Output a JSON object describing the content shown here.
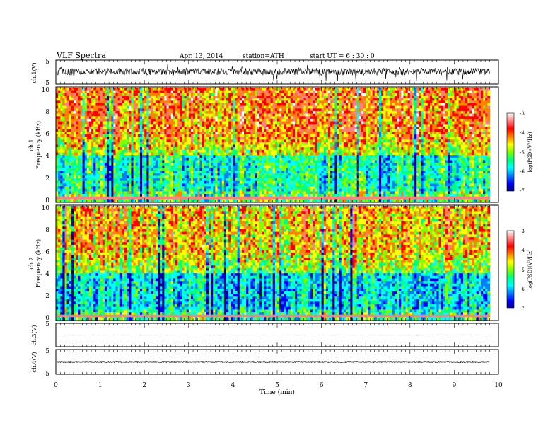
{
  "header": {
    "title": "VLF  Spectra",
    "date": "Apr. 13, 2014",
    "station": "station=ATH",
    "start": "start  UT  =    6  : 30 : 0"
  },
  "chart_data": [
    {
      "type": "line",
      "panel": "ch1-waveform",
      "ylabel": "ch.1(V)",
      "ylim": [
        -5,
        5
      ],
      "yticks": [
        "5",
        "-5"
      ],
      "baseline": 0.2,
      "noise_amplitude": 1.5,
      "x_end_min": 9.8
    },
    {
      "type": "heatmap",
      "panel": "ch1-spectrogram",
      "ylabel": [
        "ch.1",
        "Frequency  (kHz)"
      ],
      "ylim": [
        0,
        10
      ],
      "yticks": [
        "0",
        "2",
        "4",
        "6",
        "8",
        "10"
      ],
      "zlim": [
        -7,
        -3
      ],
      "colorbar_label": "log(PSD)(V²/Hz)",
      "colorbar_ticks": [
        "-3",
        "-4",
        "-5",
        "-6",
        "-7"
      ],
      "x_end_min": 9.8
    },
    {
      "type": "heatmap",
      "panel": "ch2-spectrogram",
      "ylabel": [
        "ch.2",
        "Frequency  (kHz)"
      ],
      "ylim": [
        0,
        10
      ],
      "yticks": [
        "0",
        "2",
        "4",
        "6",
        "8",
        "10"
      ],
      "zlim": [
        -7,
        -3
      ],
      "colorbar_label": "log(PSD)(V²/Hz)",
      "colorbar_ticks": [
        "-3",
        "-4",
        "-5",
        "-6",
        "-7"
      ],
      "x_end_min": 9.8
    },
    {
      "type": "line",
      "panel": "ch3-waveform",
      "ylabel": "ch.3(V)",
      "ylim": [
        -5,
        5
      ],
      "yticks": [
        "5"
      ],
      "baseline": 0,
      "noise_amplitude": 0.1,
      "x_end_min": 9.8
    },
    {
      "type": "line",
      "panel": "ch4-waveform",
      "ylabel": "ch.4(V)",
      "ylim": [
        -5,
        5
      ],
      "yticks": [
        "5",
        "-5"
      ],
      "baseline": 0,
      "noise_amplitude": 0.15,
      "x_end_min": 9.8
    }
  ],
  "xaxis": {
    "label": "Time  (min)",
    "xlim": [
      0,
      10
    ],
    "ticks": [
      "0",
      "1",
      "2",
      "3",
      "4",
      "5",
      "6",
      "7",
      "8",
      "9",
      "10"
    ]
  },
  "colors": {
    "colormap": [
      "#000080",
      "#0000ff",
      "#0080ff",
      "#00ffff",
      "#00ff80",
      "#80ff00",
      "#ffff00",
      "#ff8000",
      "#ff0000",
      "#ff8080",
      "#ffffff"
    ]
  }
}
